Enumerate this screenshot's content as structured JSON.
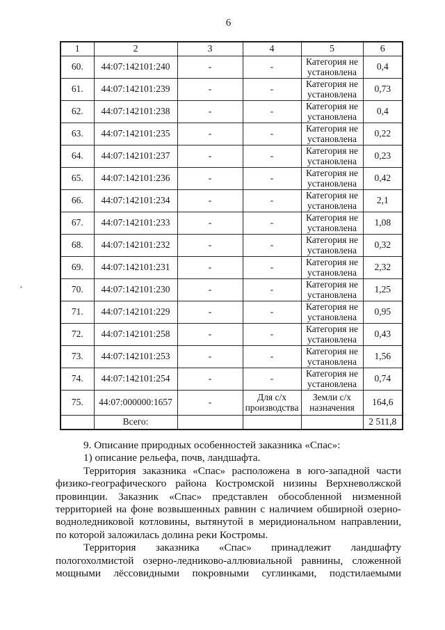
{
  "page": {
    "number": "6"
  },
  "table": {
    "header": [
      "1",
      "2",
      "3",
      "4",
      "5",
      "6"
    ],
    "rows": [
      {
        "n": "60.",
        "cad": "44:07:142101:240",
        "c3": "-",
        "c4": "-",
        "c5": "Категория не\nустановлена",
        "c6": "0,4"
      },
      {
        "n": "61.",
        "cad": "44:07:142101:239",
        "c3": "-",
        "c4": "-",
        "c5": "Категория не\nустановлена",
        "c6": "0,73"
      },
      {
        "n": "62.",
        "cad": "44:07:142101:238",
        "c3": "-",
        "c4": "-",
        "c5": "Категория не\nустановлена",
        "c6": "0,4"
      },
      {
        "n": "63.",
        "cad": "44:07:142101:235",
        "c3": "-",
        "c4": "-",
        "c5": "Категория не\nустановлена",
        "c6": "0,22"
      },
      {
        "n": "64.",
        "cad": "44:07:142101:237",
        "c3": "-",
        "c4": "-",
        "c5": "Категория не\nустановлена",
        "c6": "0,23"
      },
      {
        "n": "65.",
        "cad": "44:07:142101:236",
        "c3": "-",
        "c4": "-",
        "c5": "Категория не\nустановлена",
        "c6": "0,42"
      },
      {
        "n": "66.",
        "cad": "44:07:142101:234",
        "c3": "-",
        "c4": "-",
        "c5": "Категория не\nустановлена",
        "c6": "2,1"
      },
      {
        "n": "67.",
        "cad": "44:07:142101:233",
        "c3": "-",
        "c4": "-",
        "c5": "Категория не\nустановлена",
        "c6": "1,08"
      },
      {
        "n": "68.",
        "cad": "44:07:142101:232",
        "c3": "-",
        "c4": "-",
        "c5": "Категория не\nустановлена",
        "c6": "0,32"
      },
      {
        "n": "69.",
        "cad": "44:07:142101:231",
        "c3": "-",
        "c4": "-",
        "c5": "Категория не\nустановлена",
        "c6": "2,32"
      },
      {
        "n": "70.",
        "cad": "44:07:142101:230",
        "c3": "-",
        "c4": "-",
        "c5": "Категория не\nустановлена",
        "c6": "1,25"
      },
      {
        "n": "71.",
        "cad": "44:07:142101:229",
        "c3": "-",
        "c4": "-",
        "c5": "Категория не\nустановлена",
        "c6": "0,95"
      },
      {
        "n": "72.",
        "cad": "44:07:142101:258",
        "c3": "-",
        "c4": "-",
        "c5": "Категория не\nустановлена",
        "c6": "0,43"
      },
      {
        "n": "73.",
        "cad": "44:07:142101:253",
        "c3": "-",
        "c4": "-",
        "c5": "Категория не\nустановлена",
        "c6": "1,56"
      },
      {
        "n": "74.",
        "cad": "44:07:142101:254",
        "c3": "-",
        "c4": "-",
        "c5": "Категория не\nустановлена",
        "c6": "0,74"
      },
      {
        "n": "75.",
        "cad": "44:07:000000:1657",
        "c3": "-",
        "c4": "Для с/х\nпроизводства",
        "c5": "Земли с/х\nназначения",
        "c6": "164,6",
        "right": true,
        "tall": true
      }
    ],
    "total_label": "Всего:",
    "total_value": "2 511,8"
  },
  "body": {
    "lines": [
      {
        "text": "9. Описание природных особенностей заказника «Спас»:",
        "indent": true,
        "justify": false
      },
      {
        "text": "1) описание рельефа, почв, ландшафта.",
        "indent": true,
        "justify": false
      },
      {
        "text": "Территория заказника «Спас» расположена в юго-западной части",
        "indent": true,
        "justify": true
      },
      {
        "text": "физико-географического района Костромской низины Верхневолжской",
        "indent": false,
        "justify": true
      },
      {
        "text": "провинции. Заказник «Спас» представлен обособленной низменной",
        "indent": false,
        "justify": true
      },
      {
        "text": "территорией на фоне возвышенных равнин с наличием обширной озерно-",
        "indent": false,
        "justify": true
      },
      {
        "text": "водноледниковой котловины, вытянутой в меридиональном направлении,",
        "indent": false,
        "justify": true
      },
      {
        "text": "по которой заложилась долина реки Костромы.",
        "indent": false,
        "justify": false
      },
      {
        "text": "Территория заказника «Спас» принадлежит ландшафту",
        "indent": true,
        "justify": true
      },
      {
        "text": "пологохолмистой озерно-ледниково-аллювиальной равнины, сложенной",
        "indent": false,
        "justify": true
      },
      {
        "text": "мощными лёссовидными покровными суглинками, подстилаемыми",
        "indent": false,
        "justify": true
      }
    ]
  }
}
